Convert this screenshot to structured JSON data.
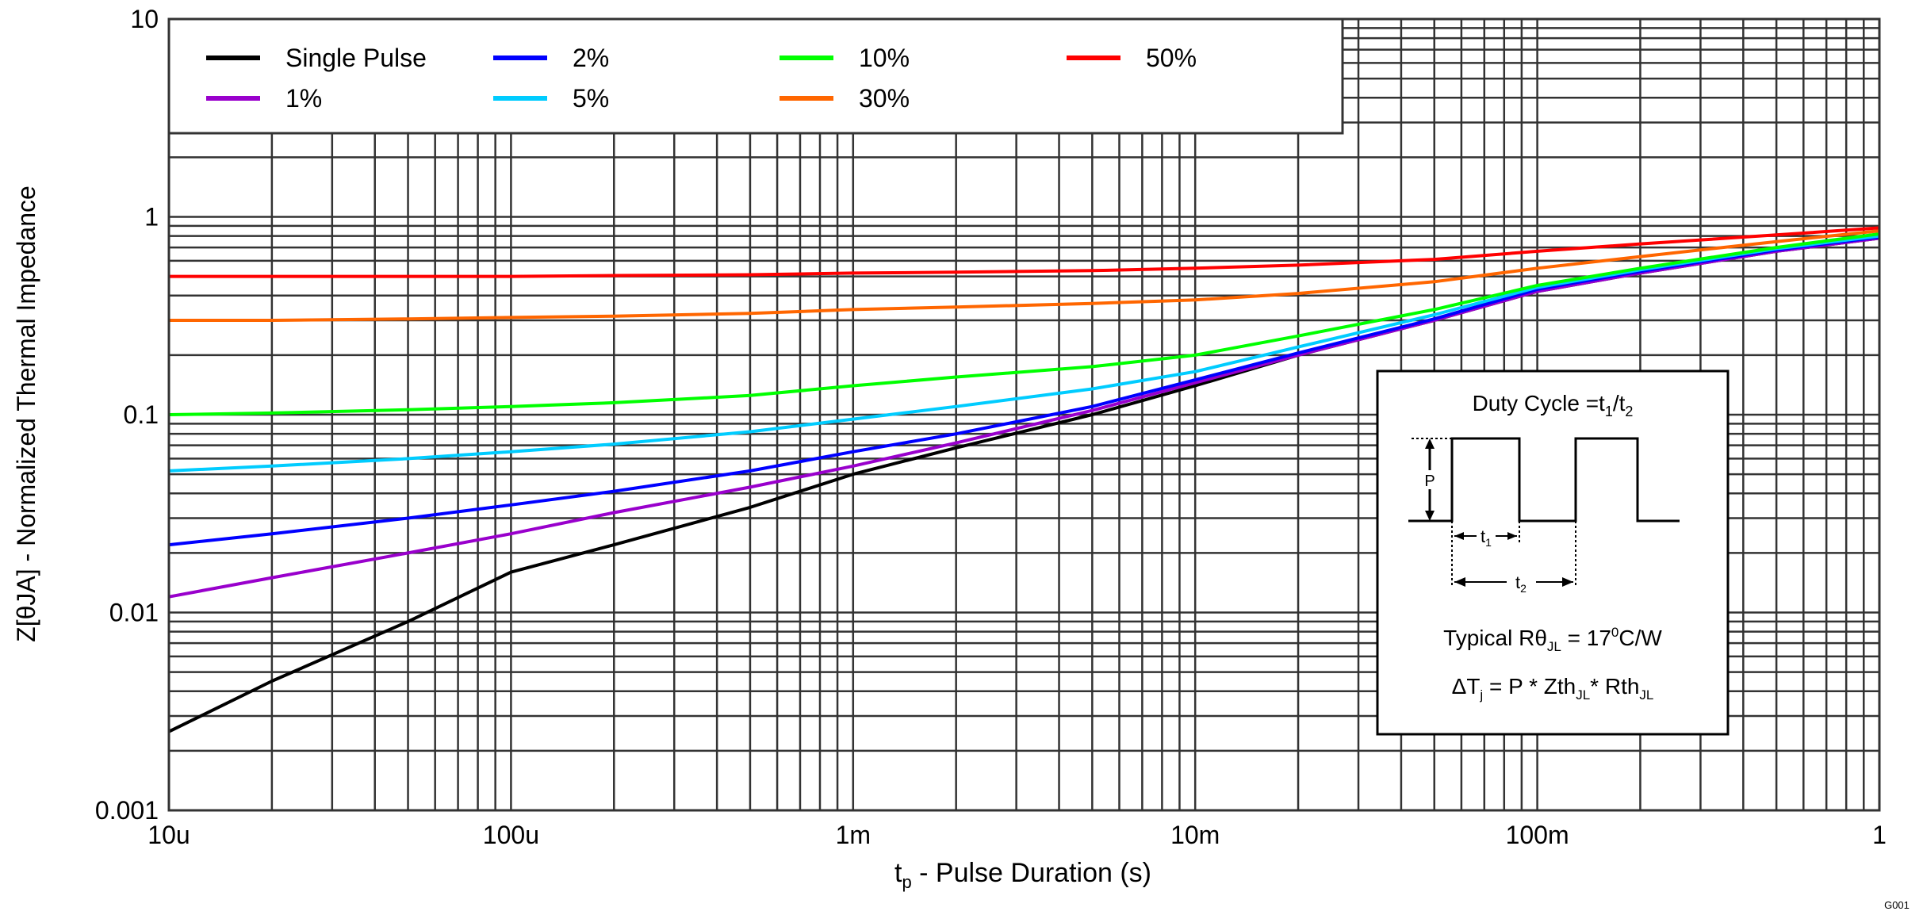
{
  "chart_data": {
    "type": "line",
    "title": "",
    "xlabel": "tp - Pulse Duration (s)",
    "xlabel_main": "t",
    "xlabel_sub": "p",
    "xlabel_rest": " - Pulse Duration (s)",
    "ylabel": "Z[θJA] - Normalized Thermal Impedance",
    "xscale": "log",
    "yscale": "log",
    "xlim": [
      1e-05,
      1
    ],
    "ylim": [
      0.001,
      10
    ],
    "grid": true,
    "legend_position": "top-left",
    "x_ticks": [
      {
        "value": 1e-05,
        "label": "10u"
      },
      {
        "value": 0.0001,
        "label": "100u"
      },
      {
        "value": 0.001,
        "label": "1m"
      },
      {
        "value": 0.01,
        "label": "10m"
      },
      {
        "value": 0.1,
        "label": "100m"
      },
      {
        "value": 1,
        "label": "1"
      }
    ],
    "y_ticks": [
      {
        "value": 0.001,
        "label": "0.001"
      },
      {
        "value": 0.01,
        "label": "0.01"
      },
      {
        "value": 0.1,
        "label": "0.1"
      },
      {
        "value": 1,
        "label": "1"
      },
      {
        "value": 10,
        "label": "10"
      }
    ],
    "x": [
      1e-05,
      2e-05,
      5e-05,
      0.0001,
      0.0002,
      0.0005,
      0.001,
      0.002,
      0.005,
      0.01,
      0.02,
      0.05,
      0.1,
      0.2,
      0.5,
      1
    ],
    "series": [
      {
        "name": "Single Pulse",
        "color": "#000000",
        "values": [
          0.0025,
          0.0045,
          0.009,
          0.016,
          0.022,
          0.034,
          0.05,
          0.068,
          0.1,
          0.14,
          0.2,
          0.3,
          0.42,
          0.52,
          0.67,
          0.78
        ]
      },
      {
        "name": "1%",
        "color": "#9900cc",
        "values": [
          0.012,
          0.015,
          0.02,
          0.025,
          0.032,
          0.043,
          0.055,
          0.072,
          0.105,
          0.145,
          0.2,
          0.3,
          0.42,
          0.52,
          0.67,
          0.78
        ]
      },
      {
        "name": "2%",
        "color": "#0000ff",
        "values": [
          0.022,
          0.025,
          0.03,
          0.035,
          0.041,
          0.052,
          0.065,
          0.08,
          0.11,
          0.15,
          0.205,
          0.305,
          0.43,
          0.53,
          0.68,
          0.79
        ]
      },
      {
        "name": "5%",
        "color": "#00ccff",
        "values": [
          0.052,
          0.055,
          0.06,
          0.065,
          0.071,
          0.082,
          0.095,
          0.11,
          0.135,
          0.165,
          0.22,
          0.32,
          0.44,
          0.54,
          0.69,
          0.8
        ]
      },
      {
        "name": "10%",
        "color": "#00ff00",
        "values": [
          0.1,
          0.102,
          0.106,
          0.11,
          0.115,
          0.125,
          0.14,
          0.155,
          0.175,
          0.2,
          0.25,
          0.34,
          0.45,
          0.55,
          0.7,
          0.82
        ]
      },
      {
        "name": "30%",
        "color": "#ff6600",
        "values": [
          0.3,
          0.3,
          0.305,
          0.31,
          0.315,
          0.325,
          0.34,
          0.35,
          0.365,
          0.38,
          0.41,
          0.47,
          0.55,
          0.63,
          0.75,
          0.85
        ]
      },
      {
        "name": "50%",
        "color": "#ff0000",
        "values": [
          0.5,
          0.5,
          0.5,
          0.5,
          0.505,
          0.51,
          0.52,
          0.525,
          0.535,
          0.55,
          0.57,
          0.61,
          0.67,
          0.73,
          0.81,
          0.88
        ]
      }
    ],
    "legend_order": [
      0,
      2,
      4,
      6,
      1,
      3,
      5
    ],
    "inset": {
      "title_main": "Duty Cycle =t",
      "title_sub1": "1",
      "title_mid": "/t",
      "title_sub2": "2",
      "p_label": "P",
      "t1_main": "t",
      "t1_sub": "1",
      "t2_main": "t",
      "t2_sub": "2",
      "line1_a": "Typical Rθ",
      "line1_sub": "JL",
      "line1_b": " = 17",
      "line1_sup": "0",
      "line1_c": "C/W",
      "line2_a": "ΔT",
      "line2_sub1": "j",
      "line2_b": " = P * Zth",
      "line2_sub2": "JL",
      "line2_c": "* Rth",
      "line2_sub3": "JL"
    },
    "footnote": "G001"
  }
}
